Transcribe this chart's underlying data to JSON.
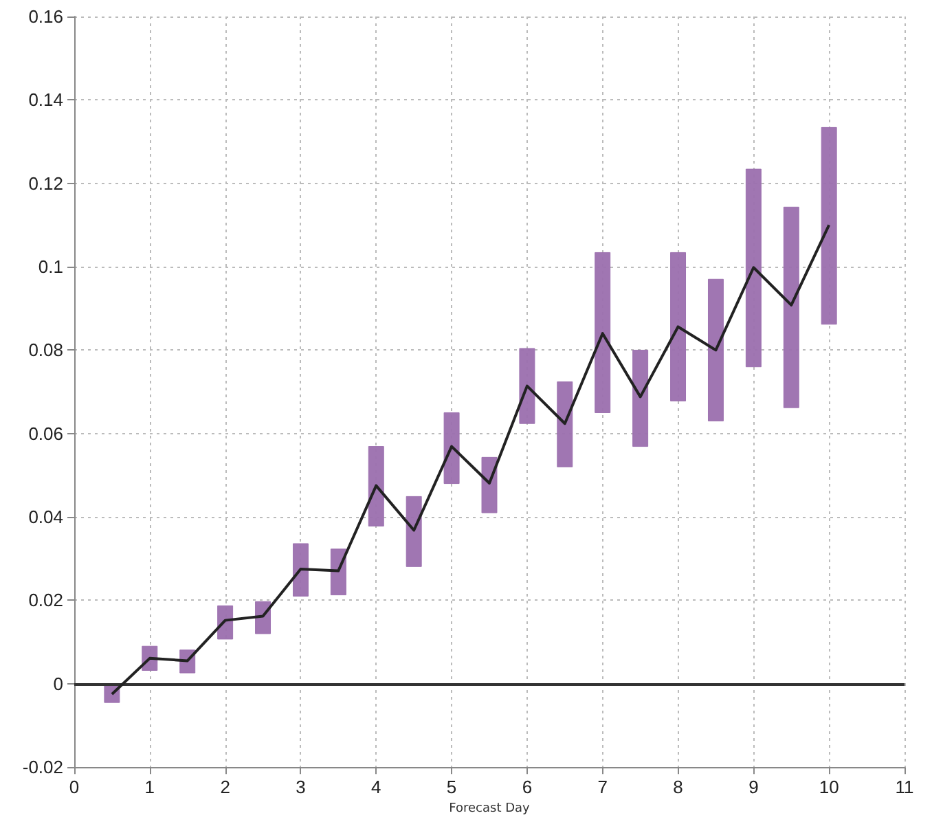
{
  "chart_data": {
    "type": "line",
    "xlabel": "Forecast Day",
    "xlim": [
      0,
      11
    ],
    "xticks": [
      0,
      1,
      2,
      3,
      4,
      5,
      6,
      7,
      8,
      9,
      10,
      11
    ],
    "ylim": [
      -0.02,
      0.16
    ],
    "yticks": [
      -0.02,
      0,
      0.02,
      0.04,
      0.06,
      0.08,
      0.1,
      0.12,
      0.14,
      0.16
    ],
    "grid": true,
    "marker": "none",
    "line_style": "solid",
    "ref_lines": [
      {
        "axis": "y",
        "value": 0,
        "color": "#333333"
      }
    ],
    "series": [
      {
        "type": "bar",
        "color": "#9b6fae",
        "x": [
          0.5,
          1,
          1.5,
          2,
          2.5,
          3,
          3.5,
          4,
          4.5,
          5,
          5.5,
          6,
          6.5,
          7,
          7.5,
          8,
          8.5,
          9,
          9.5,
          10
        ],
        "base": [
          -0.0045,
          0.0032,
          0.0026,
          0.0107,
          0.012,
          0.021,
          0.0213,
          0.0378,
          0.0281,
          0.048,
          0.041,
          0.0624,
          0.052,
          0.065,
          0.0569,
          0.0678,
          0.063,
          0.076,
          0.0662,
          0.0862
        ],
        "values": [
          0.004,
          0.0058,
          0.0055,
          0.008,
          0.0077,
          0.0126,
          0.011,
          0.0191,
          0.0168,
          0.017,
          0.0133,
          0.018,
          0.0204,
          0.0384,
          0.0231,
          0.0356,
          0.034,
          0.0474,
          0.0481,
          0.0472
        ]
      },
      {
        "color": "#222222",
        "x": [
          0.5,
          1,
          1.5,
          2,
          2.5,
          3,
          3.5,
          4,
          4.5,
          5,
          5.5,
          6,
          6.5,
          7,
          7.5,
          8,
          8.5,
          9,
          9.5,
          10
        ],
        "values": [
          -0.0025,
          0.0061,
          0.0055,
          0.0152,
          0.0162,
          0.0275,
          0.0271,
          0.0475,
          0.0368,
          0.0569,
          0.0481,
          0.0714,
          0.0624,
          0.084,
          0.0688,
          0.0856,
          0.08,
          0.0998,
          0.0908,
          0.11
        ]
      }
    ]
  }
}
